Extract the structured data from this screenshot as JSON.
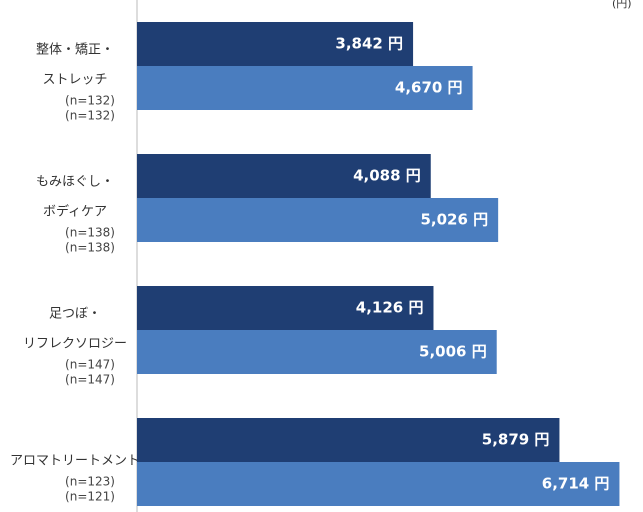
{
  "chart_data": {
    "type": "bar",
    "orientation": "horizontal",
    "unit_label": "(円)",
    "categories": [
      [
        "整体・矯正・",
        "ストレッチ"
      ],
      [
        "もみほぐし・",
        "ボディケア"
      ],
      [
        "足つぼ・",
        "リフレクソロジー"
      ],
      [
        "アロマトリートメント"
      ]
    ],
    "sample_sizes": [
      [
        "(n=132)",
        "(n=132)"
      ],
      [
        "(n=138)",
        "(n=138)"
      ],
      [
        "(n=147)",
        "(n=147)"
      ],
      [
        "(n=123)",
        "(n=121)"
      ]
    ],
    "series": [
      {
        "color": "#1f3e73",
        "values": [
          3842,
          4088,
          4126,
          5879
        ],
        "value_labels": [
          "3,842 円",
          "4,088 円",
          "4,126 円",
          "5,879 円"
        ]
      },
      {
        "color": "#4a7dbf",
        "values": [
          4670,
          5026,
          5006,
          6714
        ],
        "value_labels": [
          "4,670 円",
          "5,026 円",
          "5,006 円",
          "6,714 円"
        ]
      }
    ],
    "xlim": [
      0,
      7000
    ]
  }
}
